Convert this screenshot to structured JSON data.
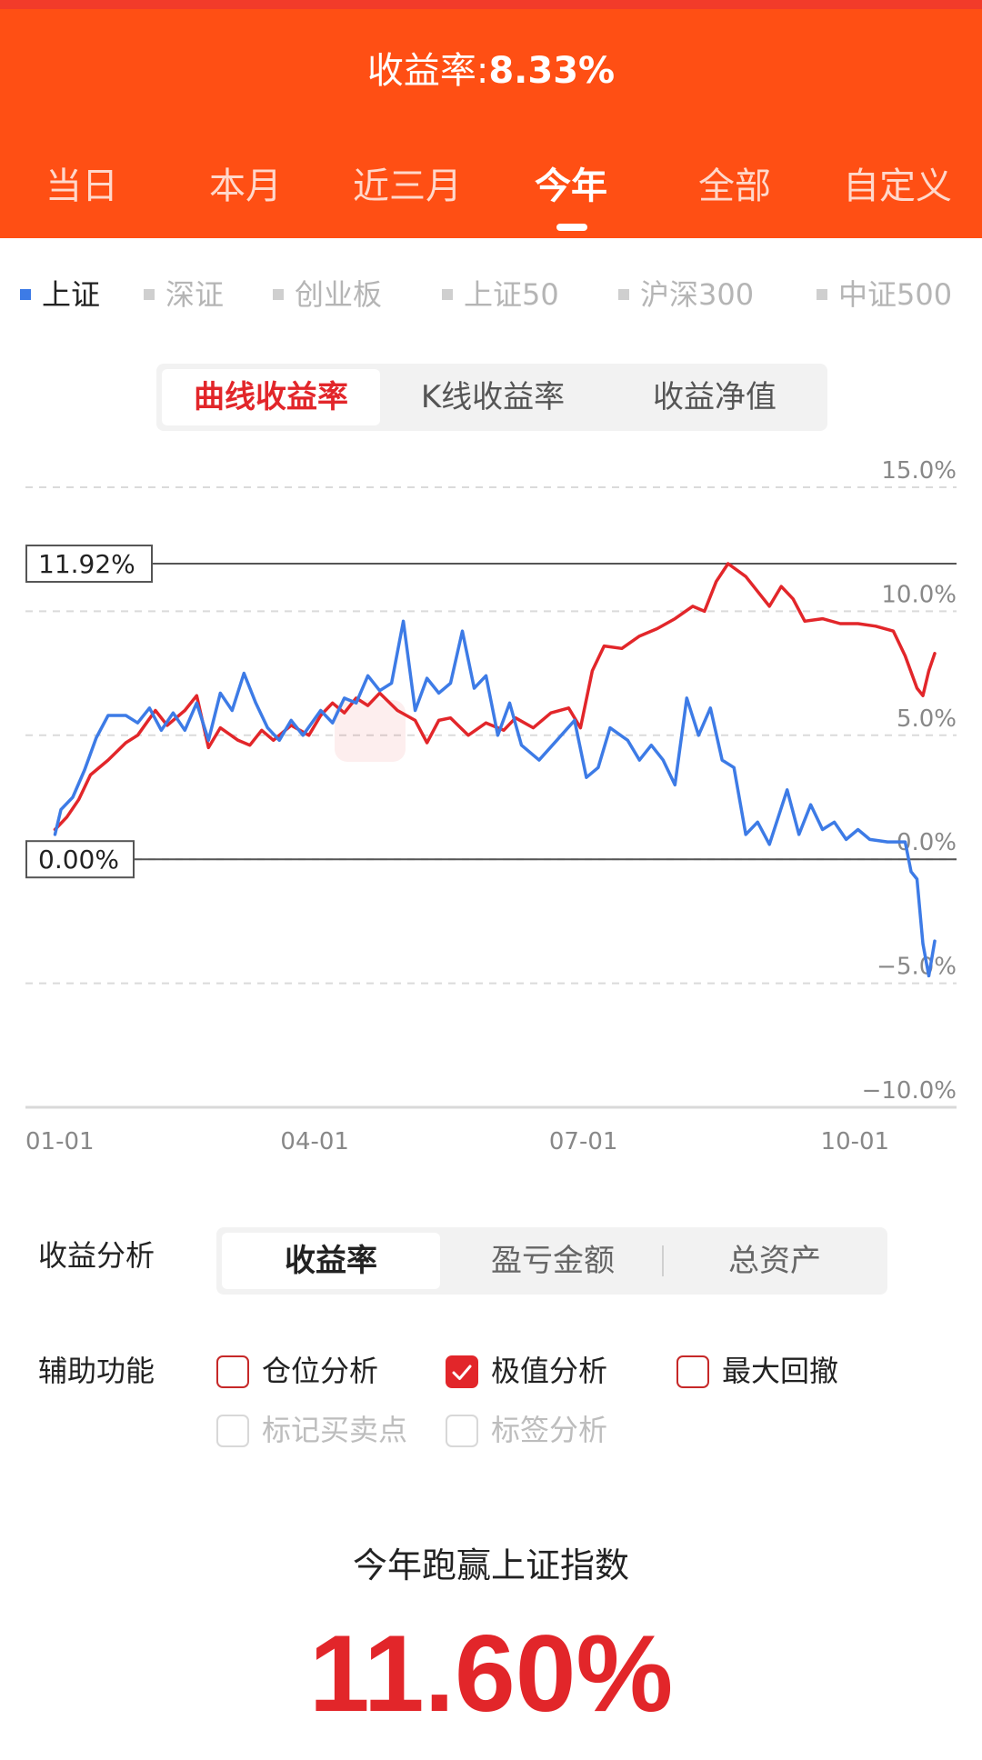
{
  "header": {
    "return_label": "收益率:",
    "return_value": "8.33%",
    "tabs": [
      "当日",
      "本月",
      "近三月",
      "今年",
      "全部",
      "自定义"
    ],
    "active_tab": 3
  },
  "indices": {
    "items": [
      "上证",
      "深证",
      "创业板",
      "上证50",
      "沪深300",
      "中证500"
    ],
    "active": 0
  },
  "chart_mode": {
    "options": [
      "曲线收益率",
      "K线收益率",
      "收益净值"
    ],
    "active": 0
  },
  "chart_data": {
    "type": "line",
    "y_tick_labels": [
      "15.0%",
      "10.0%",
      "5.0%",
      "0.0%",
      "−5.0%",
      "−10.0%"
    ],
    "y_ticks": [
      15,
      10,
      5,
      0,
      -5,
      -10
    ],
    "ylim": [
      -10,
      15
    ],
    "x_tick_labels": [
      "01-01",
      "04-01",
      "07-01",
      "10-01"
    ],
    "x_ticks": [
      0,
      90,
      181,
      273
    ],
    "xlim": [
      0,
      300
    ],
    "max_marker": {
      "label": "11.92%",
      "value": 11.92
    },
    "zero_marker": {
      "label": "0.00%",
      "value": 0
    },
    "grid": "dashed",
    "series": [
      {
        "color": "#e2262a",
        "points": [
          [
            2,
            1.2
          ],
          [
            6,
            1.7
          ],
          [
            10,
            2.4
          ],
          [
            14,
            3.4
          ],
          [
            20,
            4.0
          ],
          [
            26,
            4.7
          ],
          [
            30,
            5.0
          ],
          [
            33,
            5.5
          ],
          [
            36,
            6.0
          ],
          [
            40,
            5.4
          ],
          [
            46,
            6.0
          ],
          [
            50,
            6.6
          ],
          [
            54,
            4.5
          ],
          [
            58,
            5.3
          ],
          [
            64,
            4.8
          ],
          [
            68,
            4.6
          ],
          [
            72,
            5.2
          ],
          [
            76,
            4.8
          ],
          [
            82,
            5.4
          ],
          [
            88,
            5.0
          ],
          [
            92,
            5.8
          ],
          [
            96,
            6.3
          ],
          [
            100,
            5.9
          ],
          [
            104,
            6.5
          ],
          [
            108,
            6.2
          ],
          [
            112,
            6.7
          ],
          [
            118,
            6.0
          ],
          [
            124,
            5.6
          ],
          [
            128,
            4.7
          ],
          [
            132,
            5.6
          ],
          [
            136,
            5.7
          ],
          [
            142,
            5.0
          ],
          [
            148,
            5.5
          ],
          [
            154,
            5.2
          ],
          [
            158,
            5.7
          ],
          [
            164,
            5.3
          ],
          [
            170,
            5.9
          ],
          [
            176,
            6.1
          ],
          [
            180,
            5.3
          ],
          [
            184,
            7.6
          ],
          [
            188,
            8.6
          ],
          [
            194,
            8.5
          ],
          [
            200,
            9.0
          ],
          [
            206,
            9.3
          ],
          [
            212,
            9.7
          ],
          [
            218,
            10.2
          ],
          [
            222,
            10.0
          ],
          [
            226,
            11.2
          ],
          [
            230,
            11.92
          ],
          [
            236,
            11.4
          ],
          [
            240,
            10.8
          ],
          [
            244,
            10.2
          ],
          [
            248,
            11.0
          ],
          [
            252,
            10.5
          ],
          [
            256,
            9.6
          ],
          [
            262,
            9.7
          ],
          [
            268,
            9.5
          ],
          [
            274,
            9.5
          ],
          [
            280,
            9.4
          ],
          [
            286,
            9.2
          ],
          [
            290,
            8.2
          ],
          [
            294,
            6.9
          ],
          [
            296,
            6.6
          ],
          [
            298,
            7.6
          ],
          [
            300,
            8.3
          ]
        ]
      },
      {
        "color": "#3d7be6",
        "points": [
          [
            2,
            1.0
          ],
          [
            4,
            2.0
          ],
          [
            8,
            2.5
          ],
          [
            12,
            3.6
          ],
          [
            16,
            4.9
          ],
          [
            20,
            5.8
          ],
          [
            26,
            5.8
          ],
          [
            30,
            5.5
          ],
          [
            34,
            6.1
          ],
          [
            38,
            5.2
          ],
          [
            42,
            5.9
          ],
          [
            46,
            5.2
          ],
          [
            50,
            6.3
          ],
          [
            54,
            4.8
          ],
          [
            58,
            6.7
          ],
          [
            62,
            6.0
          ],
          [
            66,
            7.5
          ],
          [
            70,
            6.3
          ],
          [
            74,
            5.3
          ],
          [
            78,
            4.8
          ],
          [
            82,
            5.6
          ],
          [
            86,
            5.0
          ],
          [
            92,
            6.0
          ],
          [
            96,
            5.5
          ],
          [
            100,
            6.5
          ],
          [
            104,
            6.3
          ],
          [
            108,
            7.4
          ],
          [
            112,
            6.8
          ],
          [
            116,
            7.1
          ],
          [
            120,
            9.6
          ],
          [
            124,
            6.0
          ],
          [
            128,
            7.3
          ],
          [
            132,
            6.7
          ],
          [
            136,
            7.1
          ],
          [
            140,
            9.2
          ],
          [
            144,
            6.9
          ],
          [
            148,
            7.4
          ],
          [
            152,
            5.0
          ],
          [
            156,
            6.3
          ],
          [
            160,
            4.6
          ],
          [
            166,
            4.0
          ],
          [
            172,
            4.8
          ],
          [
            178,
            5.6
          ],
          [
            182,
            3.3
          ],
          [
            186,
            3.7
          ],
          [
            190,
            5.3
          ],
          [
            196,
            4.8
          ],
          [
            200,
            4.0
          ],
          [
            204,
            4.6
          ],
          [
            208,
            4.0
          ],
          [
            212,
            3.0
          ],
          [
            216,
            6.5
          ],
          [
            220,
            5.0
          ],
          [
            224,
            6.1
          ],
          [
            228,
            4.0
          ],
          [
            232,
            3.7
          ],
          [
            236,
            1.0
          ],
          [
            240,
            1.5
          ],
          [
            244,
            0.6
          ],
          [
            250,
            2.8
          ],
          [
            254,
            1.0
          ],
          [
            258,
            2.2
          ],
          [
            262,
            1.2
          ],
          [
            266,
            1.5
          ],
          [
            270,
            0.8
          ],
          [
            274,
            1.2
          ],
          [
            278,
            0.8
          ],
          [
            284,
            0.7
          ],
          [
            290,
            0.7
          ],
          [
            292,
            -0.5
          ],
          [
            294,
            -0.8
          ],
          [
            296,
            -3.4
          ],
          [
            298,
            -4.7
          ],
          [
            300,
            -3.3
          ]
        ]
      }
    ]
  },
  "analysis": {
    "label": "收益分析",
    "options": [
      "收益率",
      "盈亏金额",
      "总资产"
    ],
    "active": 0
  },
  "aux": {
    "label": "辅助功能",
    "items": [
      {
        "label": "仓位分析",
        "checked": false,
        "enabled": true
      },
      {
        "label": "极值分析",
        "checked": true,
        "enabled": true
      },
      {
        "label": "最大回撤",
        "checked": false,
        "enabled": true
      },
      {
        "label": "标记买卖点",
        "checked": false,
        "enabled": false
      },
      {
        "label": "标签分析",
        "checked": false,
        "enabled": false
      }
    ]
  },
  "summary": {
    "title": "今年跑赢上证指数",
    "value": "11.60%"
  }
}
